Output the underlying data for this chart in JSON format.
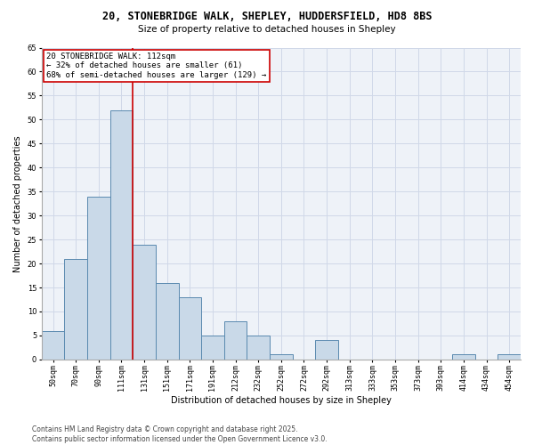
{
  "title_line1": "20, STONEBRIDGE WALK, SHEPLEY, HUDDERSFIELD, HD8 8BS",
  "title_line2": "Size of property relative to detached houses in Shepley",
  "xlabel": "Distribution of detached houses by size in Shepley",
  "ylabel": "Number of detached properties",
  "categories": [
    "50sqm",
    "70sqm",
    "90sqm",
    "111sqm",
    "131sqm",
    "151sqm",
    "171sqm",
    "191sqm",
    "212sqm",
    "232sqm",
    "252sqm",
    "272sqm",
    "292sqm",
    "313sqm",
    "333sqm",
    "353sqm",
    "373sqm",
    "393sqm",
    "414sqm",
    "434sqm",
    "454sqm"
  ],
  "values": [
    6,
    21,
    34,
    52,
    24,
    16,
    13,
    5,
    8,
    5,
    1,
    0,
    4,
    0,
    0,
    0,
    0,
    0,
    1,
    0,
    1
  ],
  "bar_color": "#c9d9e8",
  "bar_edge_color": "#5a8ab0",
  "vline_x_index": 3,
  "vline_color": "#cc0000",
  "annotation_line1": "20 STONEBRIDGE WALK: 112sqm",
  "annotation_line2": "← 32% of detached houses are smaller (61)",
  "annotation_line3": "68% of semi-detached houses are larger (129) →",
  "ylim": [
    0,
    65
  ],
  "yticks": [
    0,
    5,
    10,
    15,
    20,
    25,
    30,
    35,
    40,
    45,
    50,
    55,
    60,
    65
  ],
  "grid_color": "#d0d8e8",
  "bg_color": "#eef2f8",
  "footer_text": "Contains HM Land Registry data © Crown copyright and database right 2025.\nContains public sector information licensed under the Open Government Licence v3.0.",
  "title_fontsize": 8.5,
  "subtitle_fontsize": 7.5,
  "axis_label_fontsize": 7,
  "tick_fontsize": 6,
  "annotation_fontsize": 6.5,
  "footer_fontsize": 5.5
}
